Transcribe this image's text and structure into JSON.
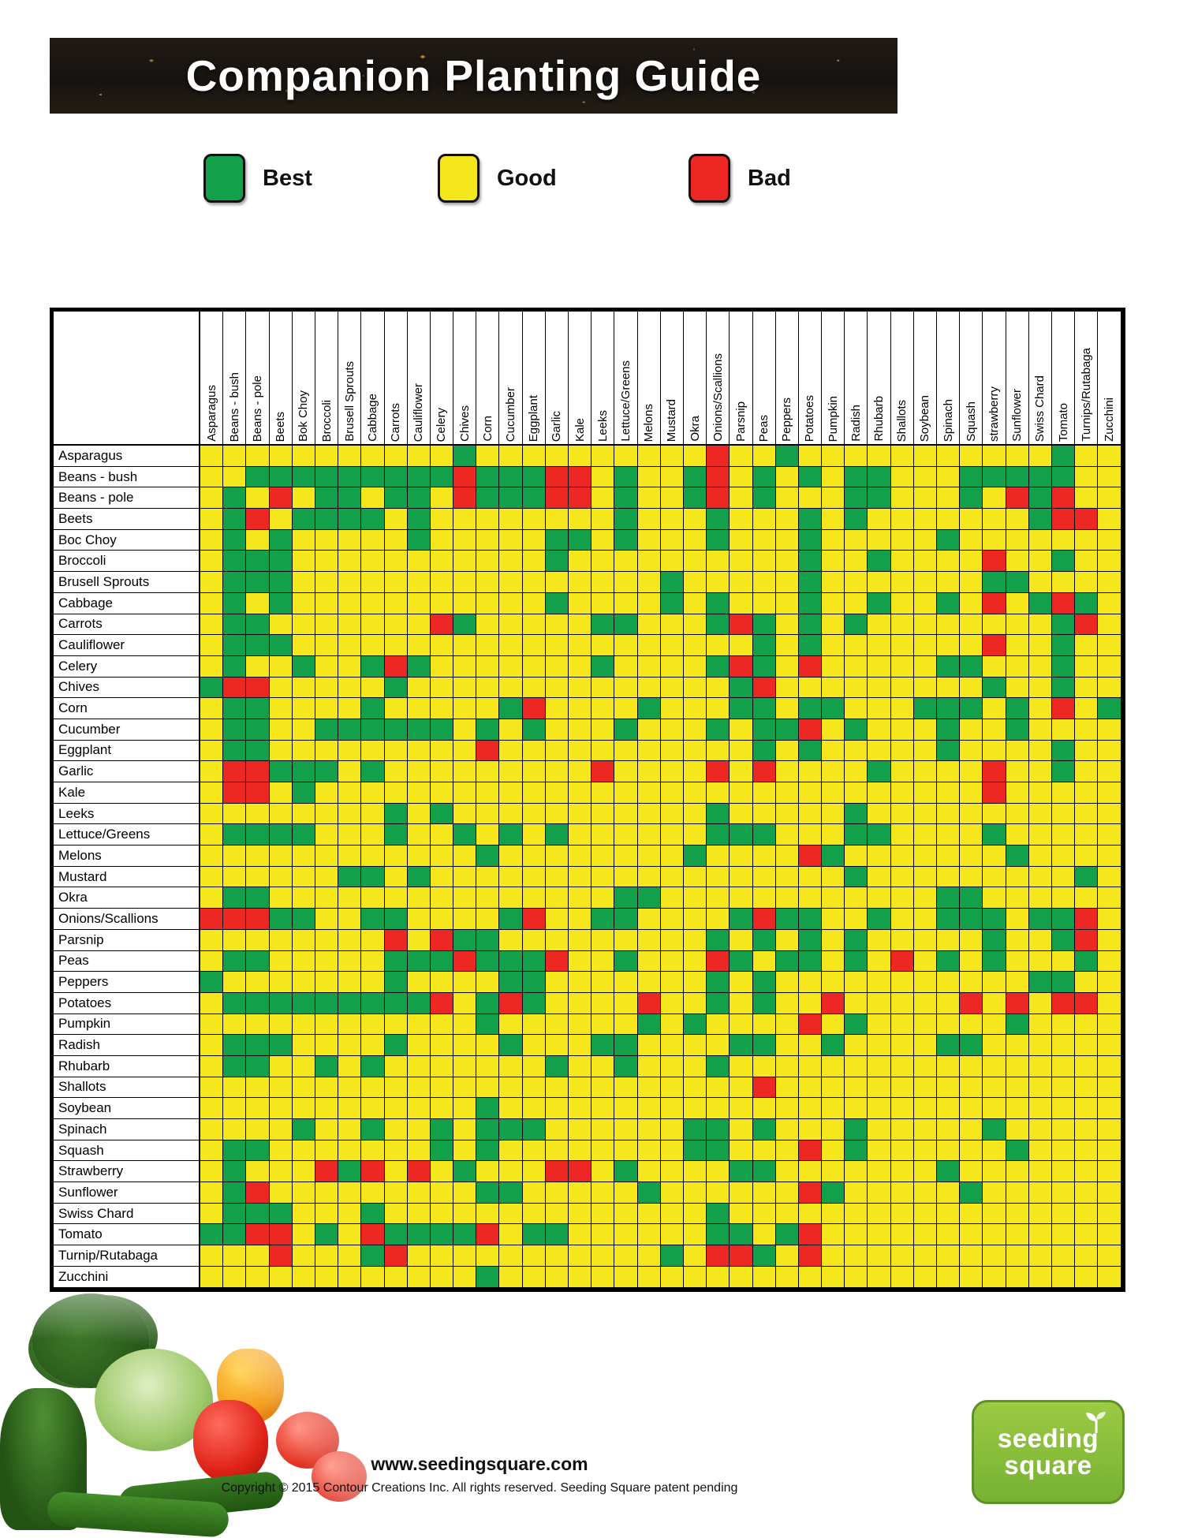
{
  "title": "Companion Planting Guide",
  "legend": {
    "best": {
      "label": "Best",
      "color": "#12A04B"
    },
    "good": {
      "label": "Good",
      "color": "#F5E71B"
    },
    "bad": {
      "label": "Bad",
      "color": "#EC2724"
    }
  },
  "footer": {
    "website": "www.seedingsquare.com",
    "copyright": "Copyright © 2015 Contour Creations Inc. All rights reserved. Seeding Square patent pending",
    "logo_line1": "seeding",
    "logo_line2": "square"
  },
  "chart_data": {
    "type": "heatmap",
    "title": "Companion Planting Guide",
    "legend_position": "top",
    "value_meanings": {
      "G": "Best",
      "Y": "Good",
      "R": "Bad"
    },
    "columns": [
      "Asparagus",
      "Beans - bush",
      "Beans - pole",
      "Beets",
      "Bok Choy",
      "Broccoli",
      "Brusell Sprouts",
      "Cabbage",
      "Carrots",
      "Cauliflower",
      "Celery",
      "Chives",
      "Corn",
      "Cucumber",
      "Eggplant",
      "Garlic",
      "Kale",
      "Leeks",
      "Lettuce/Greens",
      "Melons",
      "Mustard",
      "Okra",
      "Onions/Scallions",
      "Parsnip",
      "Peas",
      "Peppers",
      "Potatoes",
      "Pumpkin",
      "Radish",
      "Rhubarb",
      "Shallots",
      "Soybean",
      "Spinach",
      "Squash",
      "strawberry",
      "Sunflower",
      "Swiss Chard",
      "Tomato",
      "Turnips/Rutabaga",
      "Zucchini"
    ],
    "rows": [
      "Asparagus",
      "Beans - bush",
      "Beans - pole",
      "Beets",
      "Boc Choy",
      "Broccoli",
      "Brusell Sprouts",
      "Cabbage",
      "Carrots",
      "Cauliflower",
      "Celery",
      "Chives",
      "Corn",
      "Cucumber",
      "Eggplant",
      "Garlic",
      "Kale",
      "Leeks",
      "Lettuce/Greens",
      "Melons",
      "Mustard",
      "Okra",
      "Onions/Scallions",
      "Parsnip",
      "Peas",
      "Peppers",
      "Potatoes",
      "Pumpkin",
      "Radish",
      "Rhubarb",
      "Shallots",
      "Soybean",
      "Spinach",
      "Squash",
      "Strawberry",
      "Sunflower",
      "Swiss Chard",
      "Tomato",
      "Turnip/Rutabaga",
      "Zucchini"
    ],
    "matrix": [
      "YYYYYYYYYYYGYYYYYYYYYYRYYGYYYYYYYYYYYGYY",
      "YYGGGGGGGGGRGGGRRYGYYGRYGYGYGGYYYGGGGGYY",
      "YGYRYGGYGGYRGGGRRYGYYGRYGYYYGGYYYGYRGRYY",
      "YGRYGGGGYGYYYYYYYYGYYYGYYYGYGYYYYYYYGRRY",
      "YGYGYYYYYGYYYYYGGYGYYYGYYYGYYYYYGYYYYYYY",
      "YGGGYYYYYYYYYYYGYYYYYYYYYYGYYGYYYYRYYGYY",
      "YGGGYYYYYYYYYYYYYYYYGYYYYYGYYYYYYYGGYYYY",
      "YGYGYYYYYYYYYYYGYYYYGYGYYYGYYGYYGYRYGRGY",
      "YGGYYYYYYYRGYYYYYGGYYYGRGYGYGYYYYYYYYGRY",
      "YGGGYYYYYYYYYYYYYYYYYYYYGYGYYYYYYYRYYGYY",
      "YGYYGYYGRGYYYYYYYGYYYYGRGYRYYYYYGGYYYGYY",
      "GRRYYYYYGYYYYYYYYYYYYYYGRYYYYYYYYYGYYGYY",
      "YGGYYYYGYYYYYGRYYYYGYYYGGYGGYYYGGGYGYRYG",
      "YGGYYGGGGGGYGYGYYYGYYYGYGGRYGYYYGYYGYYYY",
      "YGGYYYYYYYYYRYYYYYYYYYYYGYGYYYYYGYYYYGYY",
      "YRRGGGYGYYYYYYYYYRYYYYRYRYYYYGYYYYRYYGYY",
      "YRRYGYYYYYYYYYYYYYYYYYYYYYYYYYYYYYRYYYYY",
      "YYYYYYYYGYGYYYYYYYYYYYGYYYYYGYYYYYYYYYYY",
      "YGGGGYYYGYYGYGYGYYYYYYGGGYYYGGYYYYGYYYYY",
      "YYYYYYYYYYYYGYYYYYYYYGYYYYRGYYYYYYYGYYYY",
      "YYYYYYGGYGYYYYYYYYYYYYYYYYYYGYYYYYYYYYGY",
      "YGGYYYYYYYYYYYYYYYGGYYYYYYYYYYYYGGYYYYYY",
      "RRRGGYYGGYYYYGRYYGGYYYYGRGGYYGYYGGGYGGRY",
      "YYYYYYYYRYRGGYYYYYYYYYGYGYGYGYYYYYGYYGRY",
      "YGGYYYYYGGGRGGGRYYGYYYRGYGGYGYRYGYGYYYGY",
      "GYYYYYYYGYYYYGGYYYYYYYGYGYYYYYYYYYYYGGYY",
      "YGGGGGGGGGRYGRGYYYYRYYGYGYYRYYYYYRYRYRRY",
      "YYYYYYYYYYYYGYYYYYYGYGYYYYRYGYYYYYYGYYYY",
      "YGGGYYYYGYYYYGYYYGGYYYYGGYYGYYYYGGYYYYYY",
      "YGGYYGYGYYYYYYYGYYGYYYGYYYYYYYYYYYYYYYYY",
      "YYYYYYYYYYYYYYYYYYYYYYYYRYYYYYYYYYYYYYYY",
      "YYYYYYYYYYYYGYYYYYYYYYYYYYYYYYYYYYYYYYYY",
      "YYYYGYYGYYGYGGGYYYYYYGGYGYYYGYYYYYGYYYYY",
      "YGGYYYYYYYGYGYYYYYYYYGGYYYRYGYYYYYYGYYYY",
      "YGYYYRGRYRYGYYYRRYGYYYYGGYYYYYYYGYYYYYYY",
      "YGRYYYYYYYYYGGYYYYYGYYYYYYRGYYYYYGYYYYYY",
      "YGGGYYYGYYYYYYYYYYYYYYGYYYYYYYYYYYYYYYYY",
      "GGRRYGYRGGGGRYGGYYYYYYGGYGRYYYYYYYYYYYYY",
      "YYYRYYYGRYYYYYYYYYYYGYRRGYRYYYYYYYYYYYYY",
      "YYYYYYYYYYYYGYYYYYYYYYYYYYYYYYYYYYYYYYYY"
    ]
  }
}
